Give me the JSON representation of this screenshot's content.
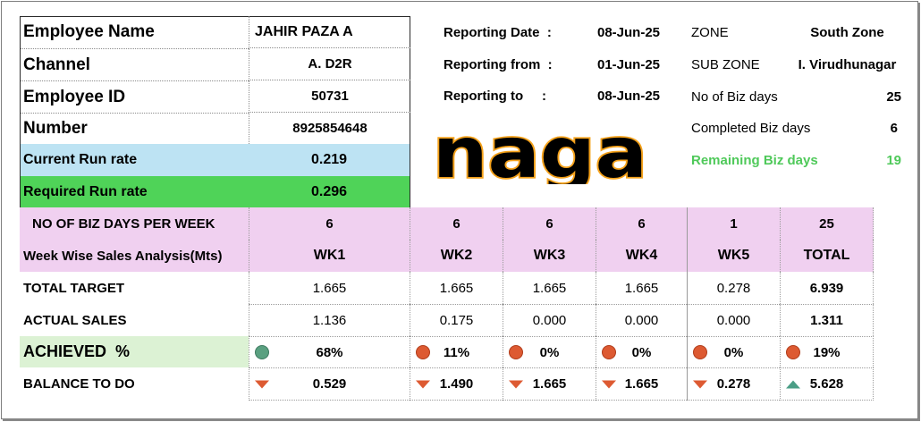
{
  "employee": {
    "name_label": "Employee Name",
    "name_value": "JAHIR PAZA A",
    "channel_label": "Channel",
    "channel_value": "A. D2R",
    "id_label": "Employee ID",
    "id_value": "50731",
    "number_label": "Number",
    "number_value": "8925854648",
    "current_rr_label": "Current Run rate",
    "current_rr_value": "0.219",
    "required_rr_label": "Required Run rate",
    "required_rr_value": "0.296"
  },
  "reporting": {
    "date_label": "Reporting Date  :",
    "date_value": "08-Jun-25",
    "from_label": "Reporting from  :",
    "from_value": "01-Jun-25",
    "to_label": "Reporting to     :",
    "to_value": "08-Jun-25"
  },
  "zone": {
    "zone_label": "ZONE",
    "zone_value": "South Zone",
    "subzone_label": "SUB ZONE",
    "subzone_value": "I. Virudhunagar",
    "biz_days_label": "No of Biz days",
    "biz_days_value": "25",
    "completed_label": "Completed Biz days",
    "completed_value": "6",
    "remaining_label": "Remaining Biz days",
    "remaining_value": "19"
  },
  "logo_text": "naga",
  "table": {
    "days_label": "NO OF BIZ DAYS PER WEEK",
    "days": [
      "6",
      "6",
      "6",
      "6",
      "1",
      "25"
    ],
    "weeks_label": "Week Wise Sales Analysis(Mts)",
    "weeks": [
      "WK1",
      "WK2",
      "WK3",
      "WK4",
      "WK5",
      "TOTAL"
    ],
    "target_label": "TOTAL TARGET",
    "target": [
      "1.665",
      "1.665",
      "1.665",
      "1.665",
      "0.278",
      "6.939"
    ],
    "actual_label": "ACTUAL SALES",
    "actual": [
      "1.136",
      "0.175",
      "0.000",
      "0.000",
      "0.000",
      "1.311"
    ],
    "achieved_label": "ACHIEVED  %",
    "achieved": [
      "68%",
      "11%",
      "0%",
      "0%",
      "0%",
      "19%"
    ],
    "achieved_status": [
      "green",
      "red",
      "red",
      "red",
      "red",
      "red"
    ],
    "balance_label": "BALANCE TO DO",
    "balance": [
      "0.529",
      "1.490",
      "1.665",
      "1.665",
      "0.278",
      "5.628"
    ],
    "balance_trend": [
      "down",
      "down",
      "down",
      "down",
      "down",
      "up"
    ]
  },
  "colors": {
    "current_rr_bg": "#bde3f3",
    "required_rr_bg": "#4fd358",
    "table_header_bg": "#f0d0f0",
    "achieved_bg": "#dcf2d4",
    "remaining_text": "#4fc95a",
    "status_green": "#5aa080",
    "status_red": "#dd5a32",
    "trend_up": "#4a9e86",
    "logo_orange": "#f5a21b"
  }
}
